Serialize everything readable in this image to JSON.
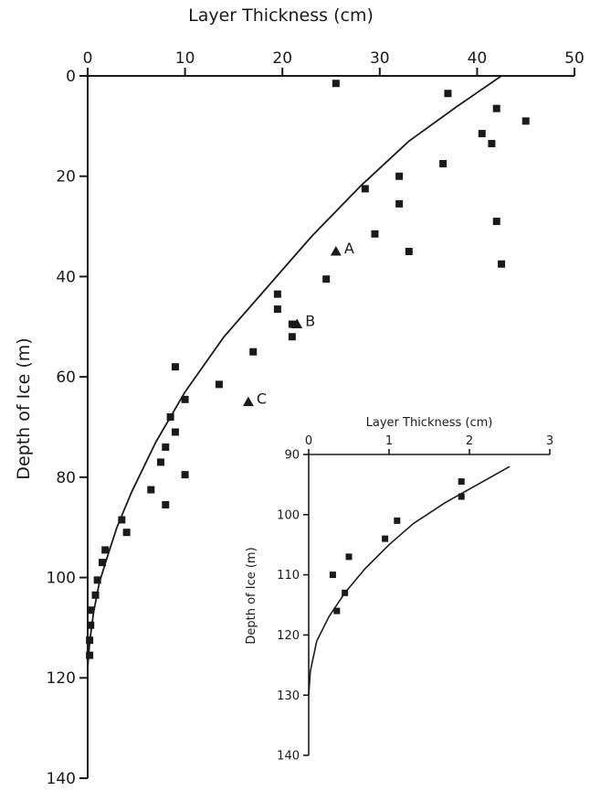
{
  "chart_data": [
    {
      "type": "scatter",
      "role": "main",
      "xlabel": "Layer Thickness (cm)",
      "ylabel": "Depth of Ice (m)",
      "x_axis_position": "top",
      "y_axis_inverted": true,
      "xlim": [
        0,
        50
      ],
      "ylim": [
        0,
        140
      ],
      "x_ticks": [
        0,
        10,
        20,
        30,
        40,
        50
      ],
      "y_ticks": [
        0,
        20,
        40,
        60,
        80,
        100,
        120,
        140
      ],
      "grid": false,
      "legend": "none",
      "points": [
        {
          "x": 25.5,
          "y": 1.5
        },
        {
          "x": 37,
          "y": 3.5
        },
        {
          "x": 42,
          "y": 6.5
        },
        {
          "x": 45,
          "y": 9
        },
        {
          "x": 40.5,
          "y": 11.5
        },
        {
          "x": 41.5,
          "y": 13.5
        },
        {
          "x": 36.5,
          "y": 17.5
        },
        {
          "x": 32,
          "y": 20
        },
        {
          "x": 28.5,
          "y": 22.5
        },
        {
          "x": 32,
          "y": 25.5
        },
        {
          "x": 42,
          "y": 29
        },
        {
          "x": 29.5,
          "y": 31.5
        },
        {
          "x": 33,
          "y": 35
        },
        {
          "x": 42.5,
          "y": 37.5
        },
        {
          "x": 24.5,
          "y": 40.5
        },
        {
          "x": 19.5,
          "y": 43.5
        },
        {
          "x": 19.5,
          "y": 46.5
        },
        {
          "x": 21,
          "y": 49.5
        },
        {
          "x": 21,
          "y": 52
        },
        {
          "x": 17,
          "y": 55
        },
        {
          "x": 9,
          "y": 58
        },
        {
          "x": 13.5,
          "y": 61.5
        },
        {
          "x": 10,
          "y": 64.5
        },
        {
          "x": 8.5,
          "y": 68
        },
        {
          "x": 9,
          "y": 71
        },
        {
          "x": 8,
          "y": 74
        },
        {
          "x": 7.5,
          "y": 77
        },
        {
          "x": 10,
          "y": 79.5
        },
        {
          "x": 6.5,
          "y": 82.5
        },
        {
          "x": 8,
          "y": 85.5
        },
        {
          "x": 3.5,
          "y": 88.5
        },
        {
          "x": 4,
          "y": 91
        },
        {
          "x": 1.8,
          "y": 94.5
        },
        {
          "x": 1.5,
          "y": 97
        },
        {
          "x": 1,
          "y": 100.5
        },
        {
          "x": 0.8,
          "y": 103.5
        },
        {
          "x": 0.3,
          "y": 106.5
        },
        {
          "x": 0.3,
          "y": 109.5
        },
        {
          "x": 0.2,
          "y": 112.5
        },
        {
          "x": 0.2,
          "y": 115.5
        }
      ],
      "labeled_points": [
        {
          "label": "A",
          "x": 25.5,
          "y": 35
        },
        {
          "label": "B",
          "x": 21.5,
          "y": 49.5
        },
        {
          "label": "C",
          "x": 16.5,
          "y": 65
        }
      ],
      "curve": {
        "x": [
          42.5,
          38,
          33,
          28,
          23,
          18.5,
          14,
          10,
          7,
          4.5,
          3,
          2,
          1.2,
          0.6,
          0.2,
          0
        ],
        "y": [
          0,
          6,
          13,
          22,
          32,
          42,
          52,
          63,
          73,
          83,
          90,
          96,
          101,
          107,
          113,
          118
        ]
      }
    },
    {
      "type": "scatter",
      "role": "inset",
      "xlabel": "Layer Thickness (cm)",
      "ylabel": "Depth of Ice (m)",
      "x_axis_position": "top",
      "y_axis_inverted": true,
      "xlim": [
        0,
        3
      ],
      "ylim": [
        90,
        140
      ],
      "x_ticks": [
        0,
        1,
        2,
        3
      ],
      "y_ticks": [
        90,
        100,
        110,
        120,
        130,
        140
      ],
      "grid": false,
      "legend": "none",
      "points": [
        {
          "x": 1.9,
          "y": 94.5
        },
        {
          "x": 1.9,
          "y": 97
        },
        {
          "x": 1.1,
          "y": 101
        },
        {
          "x": 0.95,
          "y": 104
        },
        {
          "x": 0.5,
          "y": 107
        },
        {
          "x": 0.3,
          "y": 110
        },
        {
          "x": 0.45,
          "y": 113
        },
        {
          "x": 0.35,
          "y": 116
        }
      ],
      "curve": {
        "x": [
          2.5,
          2.1,
          1.7,
          1.3,
          1.0,
          0.7,
          0.45,
          0.25,
          0.1,
          0.02,
          0
        ],
        "y": [
          92,
          95,
          98,
          101.5,
          105,
          109,
          113,
          117,
          121,
          126,
          130
        ]
      }
    }
  ]
}
